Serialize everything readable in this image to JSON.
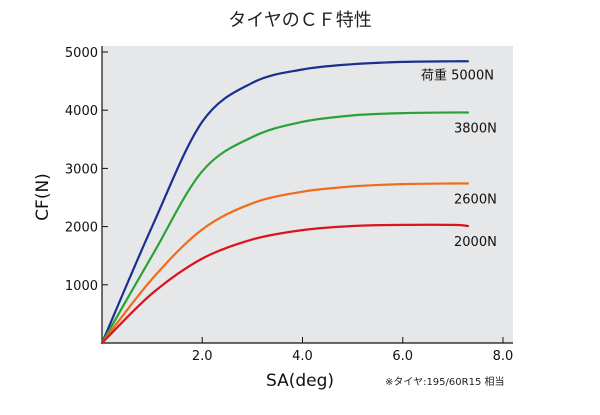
{
  "chart_data": {
    "type": "line",
    "title": "タイヤのＣＦ特性",
    "xlabel": "SA(deg)",
    "ylabel": "CF(N)",
    "xlim": [
      0,
      8.2
    ],
    "ylim": [
      0,
      5000
    ],
    "x_ticks": [
      "2.0",
      "4.0",
      "6.0",
      "8.0"
    ],
    "y_ticks": [
      "1000",
      "2000",
      "3000",
      "4000",
      "5000"
    ],
    "grid": false,
    "background_color": "#e6e7e8",
    "footnote": "※タイヤ:195/60R15 相当",
    "series": [
      {
        "name": "荷重 5000N",
        "color": "#1b2f8f",
        "x": [
          0,
          1,
          2,
          3,
          4,
          5,
          6,
          7,
          7.3
        ],
        "y": [
          0,
          2000,
          3800,
          4470,
          4700,
          4790,
          4830,
          4840,
          4840
        ]
      },
      {
        "name": "3800N",
        "color": "#2aa236",
        "x": [
          0,
          1,
          2,
          3,
          4,
          5,
          6,
          7,
          7.3
        ],
        "y": [
          0,
          1500,
          2950,
          3540,
          3800,
          3910,
          3950,
          3960,
          3960
        ]
      },
      {
        "name": "2600N",
        "color": "#ee6c1c",
        "x": [
          0,
          1,
          2,
          3,
          4,
          5,
          6,
          7,
          7.3
        ],
        "y": [
          0,
          1100,
          1950,
          2400,
          2600,
          2690,
          2730,
          2740,
          2740
        ]
      },
      {
        "name": "2000N",
        "color": "#d9141f",
        "x": [
          0,
          1,
          2,
          3,
          4,
          5,
          6,
          7,
          7.3
        ],
        "y": [
          0,
          850,
          1450,
          1780,
          1940,
          2010,
          2030,
          2030,
          2010
        ]
      }
    ]
  }
}
